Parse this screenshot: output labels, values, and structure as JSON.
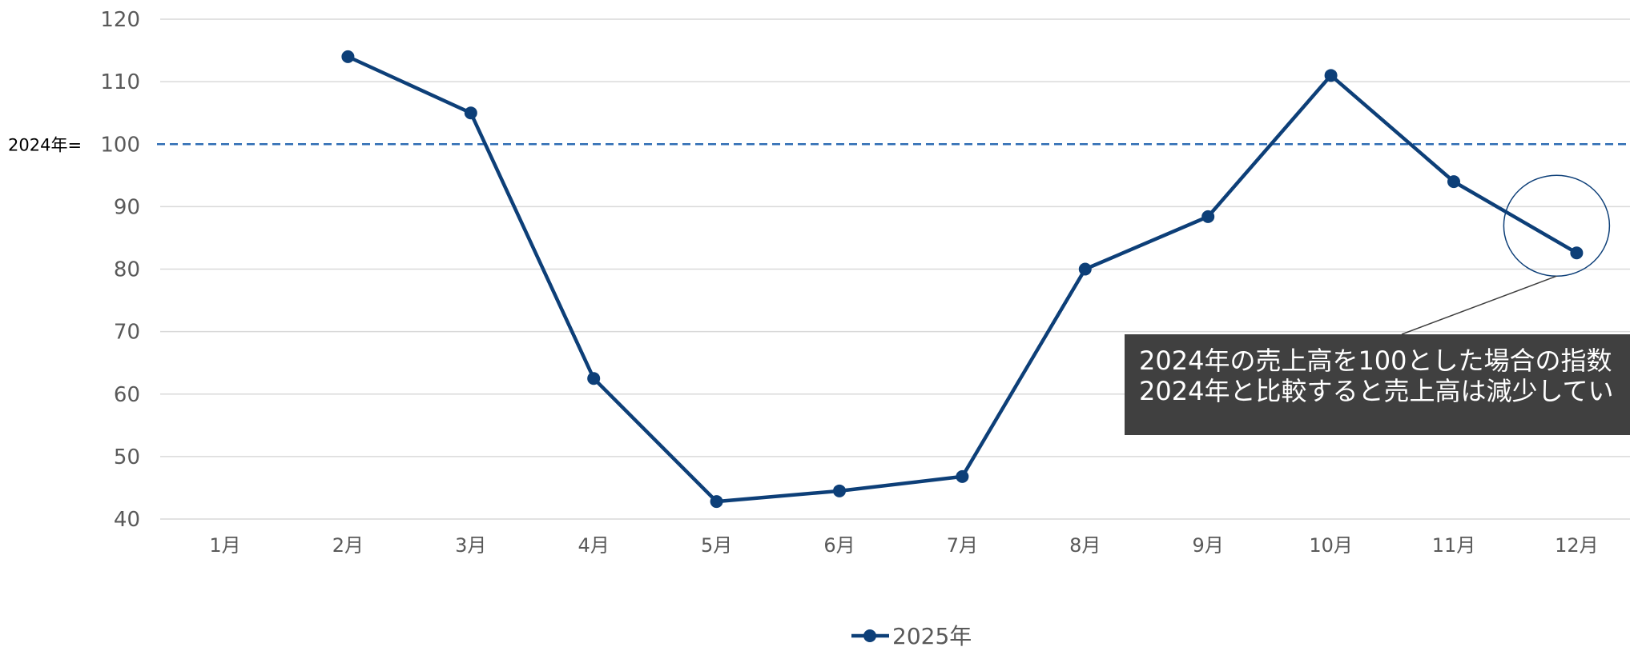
{
  "chart_data": {
    "type": "line",
    "categories": [
      "1月",
      "2月",
      "3月",
      "4月",
      "5月",
      "6月",
      "7月",
      "8月",
      "9月",
      "10月",
      "11月",
      "12月"
    ],
    "series": [
      {
        "name": "2025年",
        "values": [
          null,
          114,
          105,
          62.5,
          42.8,
          44.5,
          46.8,
          80,
          88.4,
          111,
          94,
          82.6
        ],
        "color": "#0d3f78"
      }
    ],
    "ylim": [
      40,
      120
    ],
    "yticks": [
      40,
      50,
      60,
      70,
      80,
      90,
      100,
      110,
      120
    ],
    "grid": true,
    "legend": "bottom-center",
    "reference_line": {
      "value": 100,
      "label_prefix": "2024年=",
      "color": "#2e6db4"
    },
    "annotation": {
      "lines": [
        "2024年の売上高を100とした場合の指数",
        "2024年と比較すると売上高は減少してい"
      ],
      "target_category": "12月",
      "target_value": 82.6,
      "background": "#404040",
      "text_color": "#ffffff"
    }
  }
}
